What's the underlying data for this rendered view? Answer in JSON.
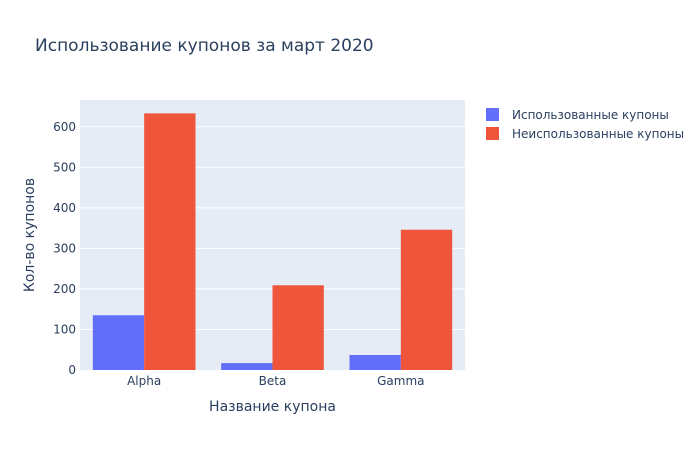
{
  "chart_data": {
    "type": "bar",
    "title": "Использование купонов за март 2020",
    "xlabel": "Название купона",
    "ylabel": "Кол-во купонов",
    "categories": [
      "Alpha",
      "Beta",
      "Gamma"
    ],
    "series": [
      {
        "name": "Использованные купоны",
        "color": "#636efa",
        "values": [
          135,
          17,
          37
        ]
      },
      {
        "name": "Неиспользованные купоны",
        "color": "#ef553b",
        "values": [
          633,
          209,
          346
        ]
      }
    ],
    "ylim": [
      0,
      666
    ],
    "yticks": [
      0,
      100,
      200,
      300,
      400,
      500,
      600
    ],
    "grid": true,
    "legend_position": "top-right",
    "plot_background": "#e5ecf6"
  }
}
